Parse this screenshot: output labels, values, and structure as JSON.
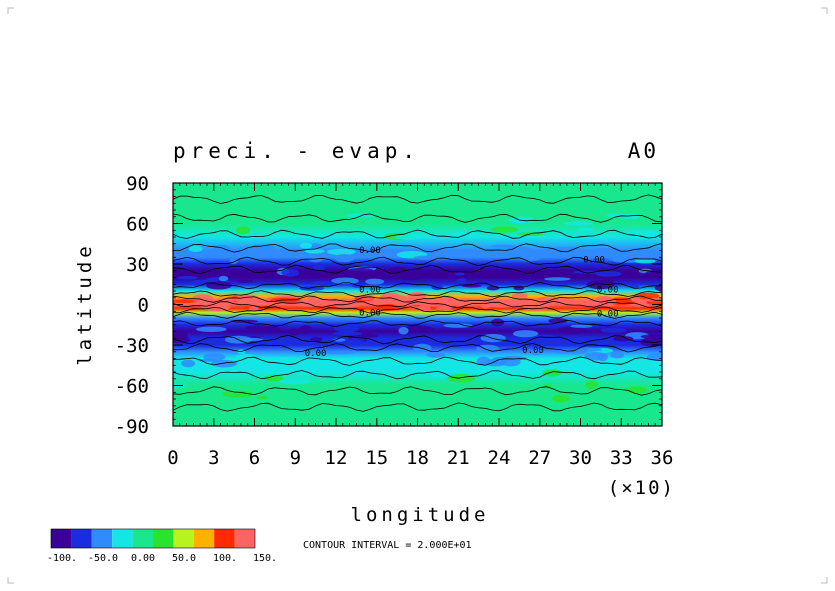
{
  "chart_data": {
    "type": "heatmap",
    "title_left": "preci. - evap.",
    "title_right": "A0",
    "xlabel": "longitude",
    "ylabel": "latitude",
    "x_tick_labels": [
      "0",
      "3",
      "6",
      "9",
      "12",
      "15",
      "18",
      "21",
      "24",
      "27",
      "30",
      "33",
      "36"
    ],
    "x_multiplier_label": "(×10)",
    "y_tick_labels": [
      "90",
      "60",
      "30",
      "0",
      "-30",
      "-60",
      "-90"
    ],
    "x_ticks": [
      0,
      3,
      6,
      9,
      12,
      15,
      18,
      21,
      24,
      27,
      30,
      33,
      36
    ],
    "y_ticks": [
      90,
      60,
      30,
      0,
      -30,
      -60,
      -90
    ],
    "xlim": [
      0,
      36
    ],
    "ylim": [
      -90,
      90
    ],
    "grid": false,
    "contour_interval_text": "CONTOUR INTERVAL = 2.000E+01",
    "contour_labels": [
      "0.00",
      "0.00",
      "0.00",
      "0.00",
      "0.00",
      "0.00",
      "0.00",
      "0.00"
    ],
    "colorbar": {
      "colors": [
        "#3a009a",
        "#1b2be0",
        "#2f8bff",
        "#13e6e4",
        "#19e78d",
        "#28e42c",
        "#b8f21f",
        "#ffb100",
        "#ff2a00",
        "#ff6464"
      ],
      "labels": [
        "-100.",
        "-50.0",
        "0.00",
        "50.0",
        "100.",
        "150."
      ]
    },
    "latitude_profile": {
      "latitudes": [
        90,
        80,
        70,
        60,
        50,
        40,
        35,
        30,
        25,
        20,
        15,
        10,
        6,
        3,
        0,
        -3,
        -6,
        -10,
        -15,
        -20,
        -25,
        -30,
        -35,
        -40,
        -50,
        -60,
        -70,
        -80,
        -90
      ],
      "values": [
        -10,
        -8,
        -15,
        -5,
        -30,
        -55,
        -75,
        -95,
        -105,
        -110,
        -90,
        -40,
        60,
        110,
        135,
        90,
        40,
        -60,
        -100,
        -110,
        -95,
        -80,
        -65,
        -50,
        -30,
        -10,
        -8,
        -15,
        -8
      ]
    }
  }
}
